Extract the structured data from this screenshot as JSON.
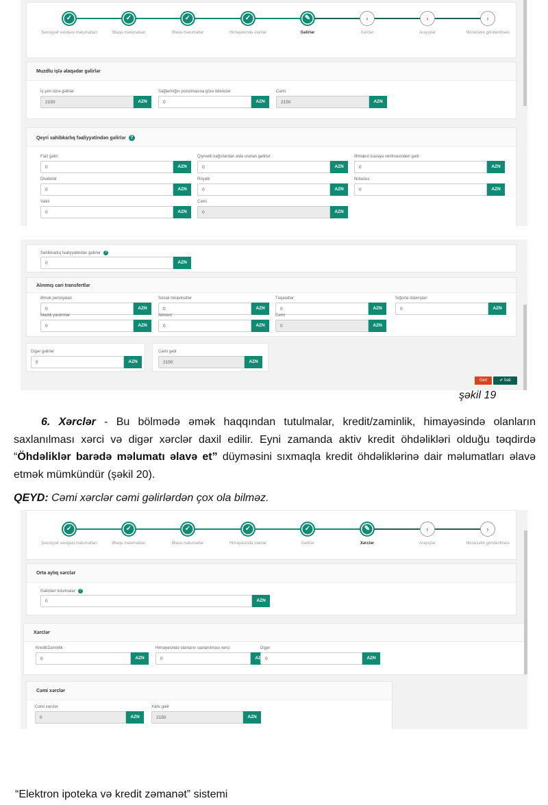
{
  "stepper_labels": [
    "Şəxsiyyət vəsiqəsi məlumatları",
    "Əlaqə məlumatları",
    "Əlavə məlumatlar",
    "Himayəsində olanlar",
    "Gəlirlər",
    "Xərclər",
    "Arayışlar",
    "Müraciətin göndərilməsi"
  ],
  "accent_color": "#0f8a73",
  "currency": "AZN",
  "fig19": {
    "active_step": 4,
    "muzdlu": {
      "title": "Muzdlu işlə əlaqədar gəlirlər",
      "fields": [
        {
          "label": "İş yeri üzrə gəlirlər",
          "value": "2150",
          "readonly": true
        },
        {
          "label": "Sağlamlığın pozulmasına görə ödənclər",
          "value": "0"
        },
        {
          "label": "Cəmi",
          "value": "2150",
          "readonly": true
        }
      ]
    },
    "qeyri": {
      "title": "Qeyri sahibkarlıq fəaliyyətindən gəlirlər",
      "help": "?",
      "fields": [
        {
          "label": "Faiz gəliri",
          "value": "0"
        },
        {
          "label": "Qiymətli kağızlardan  əldə olunan gəlirlər",
          "value": "0"
        },
        {
          "label": "Əmlakın icarəyə verilməsindən gəlir",
          "value": "0"
        },
        {
          "label": "Dividend",
          "value": "0"
        },
        {
          "label": "Royalti",
          "value": "0"
        },
        {
          "label": "Notarius",
          "value": "0"
        },
        {
          "label": "Vəkil",
          "value": "0"
        },
        {
          "label": "Cəmi",
          "value": "0",
          "readonly": true
        }
      ]
    },
    "sahibkarliq": {
      "help": "?",
      "fields": [
        {
          "label": "Sahibkarlıq fəaliyyətindən gəlirlər",
          "value": "0"
        }
      ]
    },
    "transfer": {
      "title": "Alınmış cari transfertlər",
      "fields": [
        {
          "label": "Əmək pensiyaları",
          "value": "0"
        },
        {
          "label": "Sosial müavinətlər",
          "value": "0"
        },
        {
          "label": "Təqaüdlər",
          "value": "0"
        },
        {
          "label": "Sığorta ödənişləri",
          "value": "0"
        },
        {
          "label": "Maddi yardımlar",
          "value": "0"
        },
        {
          "label": "Aliment",
          "value": "0"
        },
        {
          "label": "Cəmi",
          "value": "0",
          "readonly": true
        }
      ]
    },
    "diger": {
      "fields": [
        {
          "label": "Digər gəlirlər",
          "value": "0"
        }
      ]
    },
    "cemi": {
      "fields": [
        {
          "label": "Cəmi gəlir",
          "value": "2150",
          "readonly": true
        }
      ]
    },
    "back_label": "Geri",
    "next_label": "İrəli",
    "back_color": "#d9431e"
  },
  "caption19": "şəkil 19",
  "paragraph": {
    "lead": "6. Xərclər",
    "text1": " - Bu bölmədə əmək haqqından tutulmalar, kredit/zaminlik, himayəsində olanların saxlanılması xərci və digər xərclər daxil edilir. Eyni zamanda aktiv kredit öhdəlikləri olduğu təqdirdə “",
    "bold": "Öhdəliklər barədə məlumatı əlavə et”",
    "text2": " düyməsini sıxmaqla kredit öhdəliklərinə dair məlumatları əlavə etmək mümkündür (şəkil 20)."
  },
  "note": {
    "label": "QEYD:",
    "text": " Cəmi xərclər cəmi gəlirlərdən çox ola bilməz."
  },
  "fig20": {
    "active_step": 5,
    "orta": {
      "title": "Orta aylıq xərclər",
      "help": "?",
      "fields": [
        {
          "label": "Gəlirdən tutulmalar",
          "value": "0"
        }
      ]
    },
    "xerc": {
      "title": "Xərclər",
      "fields": [
        {
          "label": "Kredit/Zaminlik",
          "value": "0"
        },
        {
          "label": "Himayəsində olanların saxlanılması xərci",
          "value": "0"
        },
        {
          "label": "Digər",
          "value": "0"
        }
      ]
    },
    "cemi": {
      "title": "Cəmi xərclər",
      "fields": [
        {
          "label": "Cəmi xərclər",
          "value": "0",
          "readonly": true
        },
        {
          "label": "Xalis gəlir",
          "value": "2150",
          "readonly": true
        }
      ]
    }
  },
  "footer": "“Elektron ipoteka və kredit zəmanət” sistemi"
}
